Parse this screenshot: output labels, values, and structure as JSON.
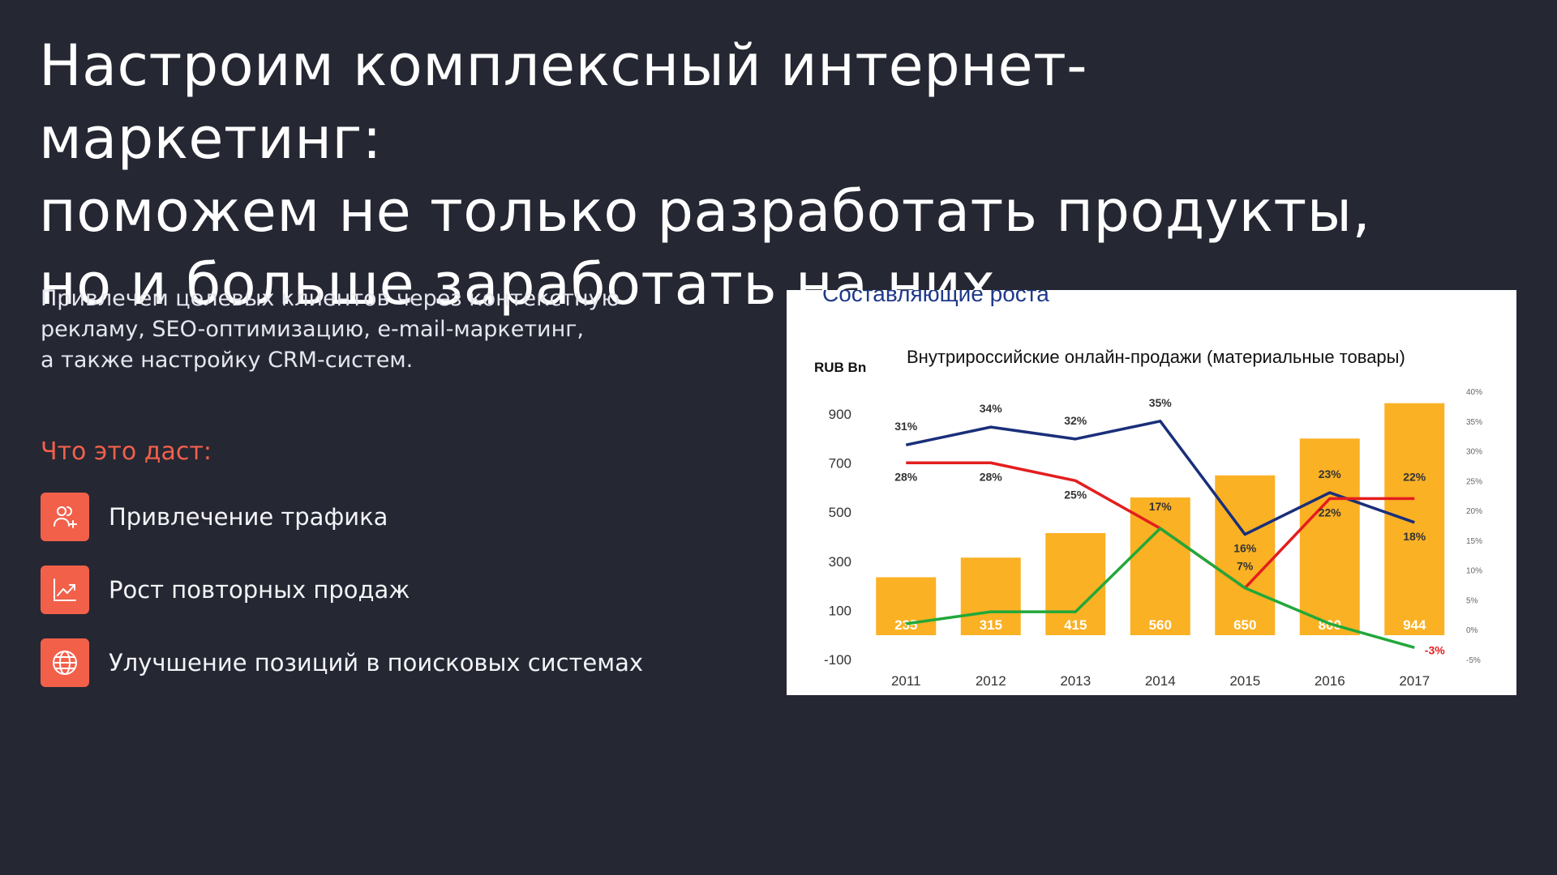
{
  "headline": {
    "line1": "Настроим комплексный интернет-маркетинг:",
    "line2": "поможем не только разработать продукты,",
    "line3": "но и больше заработать на них"
  },
  "intro": {
    "line1": "Привлечем целевых клиентов через контекстную",
    "line2": "рекламу, SEO-оптимизацию, e-mail-маркетинг,",
    "line3": "а также настройку CRM-систем."
  },
  "benefits": {
    "title": "Что это даст:",
    "items": [
      {
        "label": "Привлечение трафика",
        "icon": "users-add-icon"
      },
      {
        "label": "Рост повторных продаж",
        "icon": "growth-chart-icon"
      },
      {
        "label": "Улучшение позиций в поисковых системах",
        "icon": "globe-icon"
      }
    ]
  },
  "colors": {
    "background": "#252733",
    "accent": "#f2604a",
    "bar": "#fbb124",
    "line_blue": "#1a2f7a",
    "line_red": "#e31e1e",
    "line_green": "#22a83a"
  },
  "chart_data": {
    "type": "bar",
    "header": "Составляющие роста",
    "title": "Внутрироссийские онлайн-продажи (материальные товары)",
    "ylabel": "RUB Bn",
    "categories": [
      "2011",
      "2012",
      "2013",
      "2014",
      "2015",
      "2016",
      "2017"
    ],
    "ylim": [
      -100,
      900
    ],
    "yticks": [
      "900",
      "700",
      "500",
      "300",
      "100",
      "-100"
    ],
    "y2lim": [
      -5,
      40
    ],
    "y2ticks": [
      "40%",
      "35%",
      "30%",
      "25%",
      "20%",
      "15%",
      "10%",
      "5%",
      "0%",
      "-5%"
    ],
    "grid": false,
    "series": [
      {
        "type": "bar",
        "values": [
          235,
          315,
          415,
          560,
          650,
          800,
          944
        ],
        "labels": [
          "235",
          "315",
          "415",
          "560",
          "650",
          "800",
          "944"
        ]
      },
      {
        "type": "line",
        "color": "#1a2f7a",
        "values": [
          31,
          34,
          32,
          35,
          16,
          23,
          18
        ],
        "labels": [
          "31%",
          "34%",
          "32%",
          "35%",
          "16%",
          "23%",
          "18%"
        ]
      },
      {
        "type": "line",
        "color": "#e31e1e",
        "values": [
          28,
          28,
          25,
          17,
          7,
          22,
          22
        ],
        "labels": [
          "28%",
          "28%",
          "25%",
          "17%",
          "7%",
          "22%",
          "22%"
        ]
      },
      {
        "type": "line",
        "color": "#22a83a",
        "values": [
          1,
          3,
          3,
          17,
          7,
          1,
          -3
        ],
        "labels": [
          "",
          "",
          "",
          "",
          "",
          "",
          "-3%"
        ]
      }
    ]
  }
}
